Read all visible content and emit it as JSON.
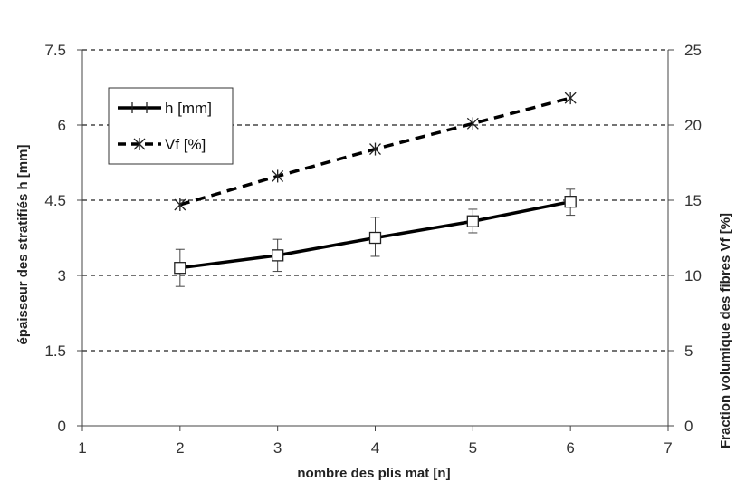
{
  "chart_data": {
    "type": "line",
    "xlabel": "nombre des plis mat [n]",
    "ylabel": "épaisseur des stratifiés  h [mm]",
    "y2label": "Fraction volumique des fibres Vf [%]",
    "xlim": [
      1,
      7
    ],
    "ylim": [
      0,
      7.5
    ],
    "y2lim": [
      0,
      25
    ],
    "x_ticks": [
      "1",
      "2",
      "3",
      "4",
      "5",
      "6",
      "7"
    ],
    "y_ticks": [
      "0",
      "1.5",
      "3",
      "4.5",
      "6",
      "7.5"
    ],
    "y2_ticks": [
      "0",
      "5",
      "10",
      "15",
      "20",
      "25"
    ],
    "grid": "horizontal dashed",
    "legend_position": "top-left",
    "series": [
      {
        "name": "h [mm]",
        "axis": "left",
        "style": "solid",
        "marker": "square",
        "color": "#000000",
        "x": [
          2,
          3,
          4,
          5,
          6
        ],
        "values": [
          3.15,
          3.4,
          3.75,
          4.08,
          4.47
        ],
        "error_low": [
          2.78,
          3.08,
          3.38,
          3.85,
          4.2
        ],
        "error_high": [
          3.52,
          3.72,
          4.16,
          4.32,
          4.72
        ]
      },
      {
        "name": "Vf [%]",
        "axis": "right",
        "style": "dashed",
        "marker": "star",
        "color": "#000000",
        "x": [
          2,
          3,
          4,
          5,
          6
        ],
        "values": [
          14.7,
          16.6,
          18.4,
          20.1,
          21.8
        ]
      }
    ]
  }
}
